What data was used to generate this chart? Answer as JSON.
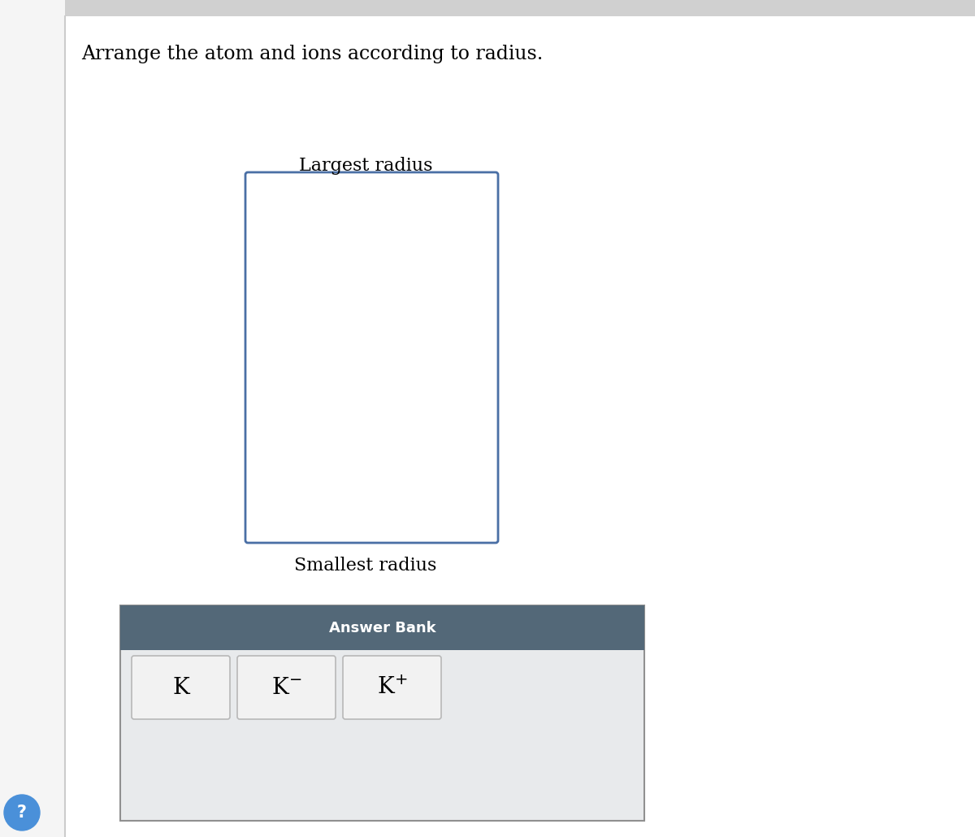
{
  "title": "Arrange the atom and ions according to radius.",
  "largest_label": "Largest radius",
  "smallest_label": "Smallest radius",
  "answer_bank_label": "Answer Bank",
  "bg_color": "#ffffff",
  "page_bg_left": "#e8e8e8",
  "box_border_color": "#4a6fa5",
  "answer_bank_header_color": "#536878",
  "answer_bank_bg": "#e8eaec",
  "item_bg": "#f2f2f2",
  "item_border": "#b8b8b8",
  "title_fontsize": 17,
  "largest_fontsize": 16,
  "smallest_fontsize": 16,
  "answer_bank_fontsize": 13,
  "item_fontsize": 20,
  "left_bar_color": "#d8d8d8",
  "top_bar_color": "#e0e0e0"
}
